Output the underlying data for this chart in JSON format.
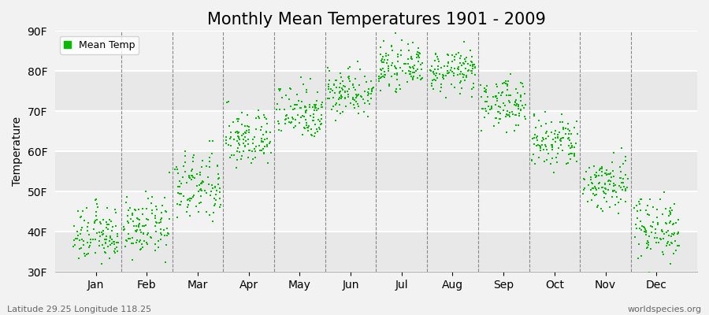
{
  "title": "Monthly Mean Temperatures 1901 - 2009",
  "ylabel": "Temperature",
  "xlabel_bottom_left": "Latitude 29.25 Longitude 118.25",
  "xlabel_bottom_right": "worldspecies.org",
  "legend_label": "Mean Temp",
  "dot_color": "#00BB00",
  "background_color": "#f2f2f2",
  "plot_bg_color": "#f2f2f2",
  "ylim": [
    30,
    90
  ],
  "yticks": [
    30,
    40,
    50,
    60,
    70,
    80,
    90
  ],
  "ytick_labels": [
    "30F",
    "40F",
    "50F",
    "60F",
    "70F",
    "80F",
    "90F"
  ],
  "months": [
    "Jan",
    "Feb",
    "Mar",
    "Apr",
    "May",
    "Jun",
    "Jul",
    "Aug",
    "Sep",
    "Oct",
    "Nov",
    "Dec"
  ],
  "month_mean_F": [
    39,
    41,
    51,
    63,
    70,
    75,
    81,
    80,
    72,
    62,
    52,
    41
  ],
  "month_std_F": [
    3.5,
    3.5,
    4.5,
    3.5,
    3.5,
    3.0,
    2.5,
    2.5,
    3.0,
    3.5,
    3.5,
    4.0
  ],
  "n_years": 109,
  "title_fontsize": 15,
  "axis_fontsize": 10,
  "tick_fontsize": 10,
  "marker_size": 2.5
}
